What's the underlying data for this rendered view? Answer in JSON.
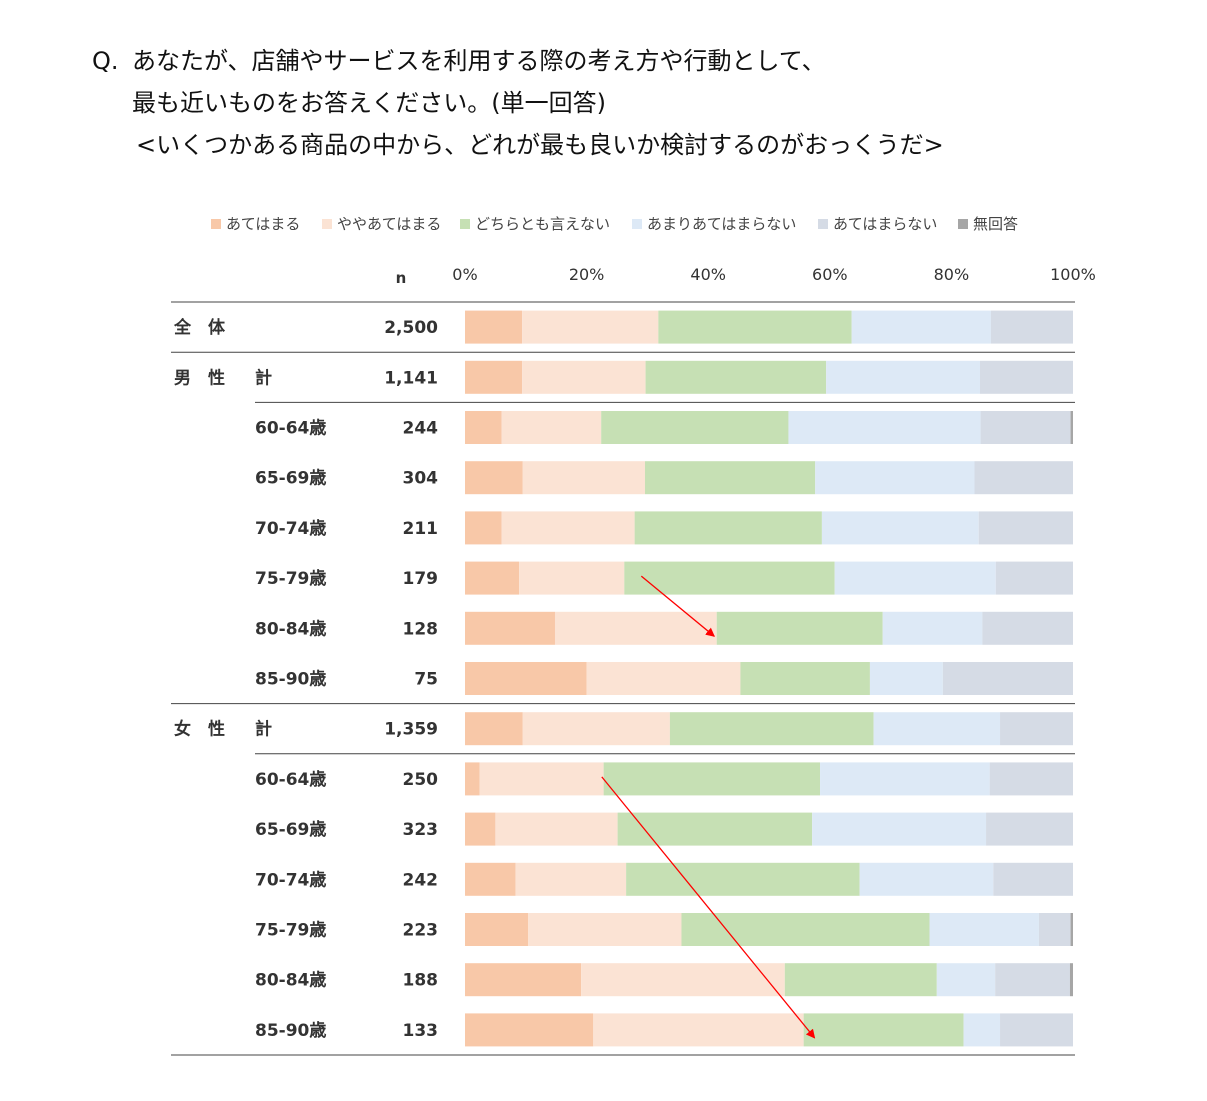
{
  "question": {
    "prefix": "Q.",
    "line1": "あなたが、店舗やサービスを利用する際の考え方や行動として、",
    "line2": "最も近いものをお答えください。(単一回答)",
    "line3": "<いくつかある商品の中から、どれが最も良いか検討するのがおっくうだ>"
  },
  "chart_data": {
    "type": "bar",
    "orientation": "horizontal",
    "stacked": true,
    "percent": true,
    "n_header": "n",
    "xlim": [
      0,
      100
    ],
    "x_ticks": [
      "0%",
      "20%",
      "40%",
      "60%",
      "80%",
      "100%"
    ],
    "legend_position": "top",
    "categories": [
      {
        "group": "全　体",
        "sub": "",
        "n": "2,500"
      },
      {
        "group": "男　性",
        "sub": "計",
        "n": "1,141"
      },
      {
        "group": "",
        "sub": "60-64歳",
        "n": "244"
      },
      {
        "group": "",
        "sub": "65-69歳",
        "n": "304"
      },
      {
        "group": "",
        "sub": "70-74歳",
        "n": "211"
      },
      {
        "group": "",
        "sub": "75-79歳",
        "n": "179"
      },
      {
        "group": "",
        "sub": "80-84歳",
        "n": "128"
      },
      {
        "group": "",
        "sub": "85-90歳",
        "n": "75"
      },
      {
        "group": "女　性",
        "sub": "計",
        "n": "1,359"
      },
      {
        "group": "",
        "sub": "60-64歳",
        "n": "250"
      },
      {
        "group": "",
        "sub": "65-69歳",
        "n": "323"
      },
      {
        "group": "",
        "sub": "70-74歳",
        "n": "242"
      },
      {
        "group": "",
        "sub": "75-79歳",
        "n": "223"
      },
      {
        "group": "",
        "sub": "80-84歳",
        "n": "188"
      },
      {
        "group": "",
        "sub": "85-90歳",
        "n": "133"
      }
    ],
    "series": [
      {
        "name": "あてはまる",
        "color": "#f8c8a8",
        "values": [
          9.4,
          9.4,
          6.0,
          9.5,
          6.0,
          8.9,
          14.8,
          20.0,
          9.5,
          2.4,
          5.0,
          8.3,
          10.4,
          19.1,
          21.1
        ]
      },
      {
        "name": "ややあてはまる",
        "color": "#fbe3d4",
        "values": [
          22.4,
          20.3,
          16.4,
          20.1,
          21.9,
          17.3,
          26.6,
          25.3,
          24.2,
          20.4,
          20.1,
          18.2,
          25.2,
          33.5,
          34.6
        ]
      },
      {
        "name": "どちらとも言えない",
        "color": "#c6e0b4",
        "values": [
          31.8,
          29.7,
          30.8,
          28.0,
          30.8,
          34.6,
          27.3,
          21.3,
          33.5,
          35.6,
          32.0,
          38.4,
          40.8,
          25.0,
          26.3
        ]
      },
      {
        "name": "あまりあてはまらない",
        "color": "#dde9f6",
        "values": [
          22.9,
          25.3,
          31.6,
          26.2,
          25.8,
          26.5,
          16.4,
          12.0,
          20.8,
          27.9,
          28.6,
          22.0,
          18.0,
          9.6,
          6.0
        ]
      },
      {
        "name": "あてはまらない",
        "color": "#d5dbe5",
        "values": [
          13.5,
          15.3,
          14.8,
          16.2,
          15.5,
          12.7,
          14.9,
          21.4,
          12.0,
          13.7,
          14.3,
          13.1,
          5.2,
          12.3,
          12.0
        ]
      },
      {
        "name": "無回答",
        "color": "#a6a6a6",
        "values": [
          0.0,
          0.0,
          0.4,
          0.0,
          0.0,
          0.0,
          0.0,
          0.0,
          0.0,
          0.0,
          0.0,
          0.0,
          0.4,
          0.5,
          0.0
        ]
      }
    ],
    "annotations": [
      {
        "type": "arrow",
        "color": "#ff0000",
        "from": {
          "row": 5,
          "x": 29.0
        },
        "to": {
          "row": 6,
          "x": 41.0
        }
      },
      {
        "type": "arrow",
        "color": "#ff0000",
        "from": {
          "row": 9,
          "x": 22.5
        },
        "to": {
          "row": 14,
          "x": 57.5
        }
      }
    ]
  }
}
